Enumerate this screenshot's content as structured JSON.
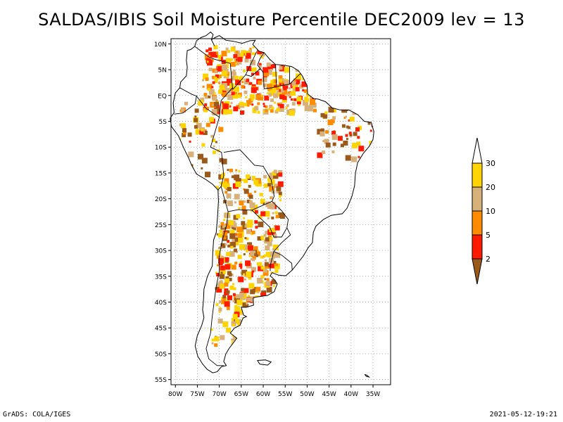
{
  "title": "SALDAS/IBIS Soil Moisture Percentile DEC2009 lev = 13",
  "map": {
    "region": "South America",
    "lon_range": [
      -81,
      -31
    ],
    "lat_range": [
      -56,
      11
    ],
    "lat_ticks": [
      "10N",
      "5N",
      "EQ",
      "5S",
      "10S",
      "15S",
      "20S",
      "25S",
      "30S",
      "35S",
      "40S",
      "45S",
      "50S",
      "55S"
    ],
    "lon_ticks": [
      "80W",
      "75W",
      "70W",
      "65W",
      "60W",
      "55W",
      "50W",
      "45W",
      "40W",
      "35W"
    ],
    "grid": true
  },
  "legend": {
    "labels": [
      "2",
      "5",
      "10",
      "20",
      "30"
    ],
    "colors": [
      "#9c5a1a",
      "#ff1a00",
      "#ff8c00",
      "#d8b07a",
      "#ffd400",
      "#ffffff"
    ]
  },
  "footer": {
    "left": "GrADS: COLA/IGES",
    "right": "2021-05-12-19:21"
  }
}
